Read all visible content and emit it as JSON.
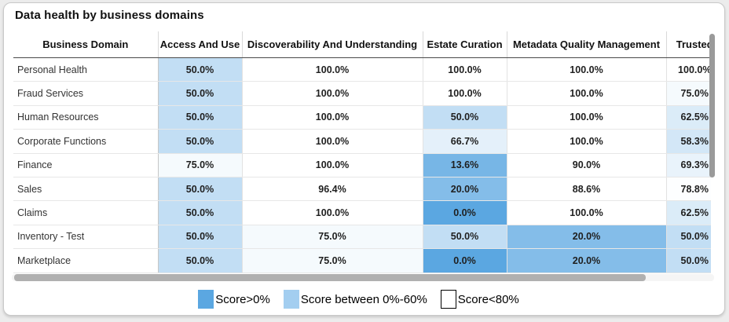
{
  "card": {
    "title": "Data health by business domains"
  },
  "chart_data": {
    "type": "heatmap",
    "title": "Data health by business domains",
    "columns": [
      "Business Domain",
      "Access And Use",
      "Discoverability And Understanding",
      "Estate Curation",
      "Metadata Quality Management",
      "Trusted"
    ],
    "rows": [
      {
        "domain": "Personal Health",
        "values": [
          50.0,
          100.0,
          100.0,
          100.0,
          100.0
        ]
      },
      {
        "domain": "Fraud Services",
        "values": [
          50.0,
          100.0,
          100.0,
          100.0,
          75.0
        ]
      },
      {
        "domain": "Human Resources",
        "values": [
          50.0,
          100.0,
          50.0,
          100.0,
          62.5
        ]
      },
      {
        "domain": "Corporate Functions",
        "values": [
          50.0,
          100.0,
          66.7,
          100.0,
          58.3
        ]
      },
      {
        "domain": "Finance",
        "values": [
          75.0,
          100.0,
          13.6,
          90.0,
          69.3
        ]
      },
      {
        "domain": "Sales",
        "values": [
          50.0,
          96.4,
          20.0,
          88.6,
          78.8
        ]
      },
      {
        "domain": "Claims",
        "values": [
          50.0,
          100.0,
          0.0,
          100.0,
          62.5
        ]
      },
      {
        "domain": "Inventory - Test",
        "values": [
          50.0,
          75.0,
          50.0,
          20.0,
          50.0
        ]
      },
      {
        "domain": "Marketplace",
        "values": [
          50.0,
          75.0,
          0.0,
          20.0,
          50.0
        ]
      }
    ],
    "value_suffix": "%",
    "value_decimals": 1,
    "color_scale": {
      "low_color": "#5BA7E1",
      "high_color": "#FFFFFF",
      "domain": [
        0,
        80
      ]
    },
    "legend": [
      {
        "label": "Score>0%",
        "swatch": "#5BA7E1",
        "border": "none"
      },
      {
        "label": "Score between 0%-60%",
        "swatch": "#A3CEF0",
        "border": "none"
      },
      {
        "label": "Score<80%",
        "swatch": "#FFFFFF",
        "border": "1.5px solid #000000"
      }
    ]
  }
}
